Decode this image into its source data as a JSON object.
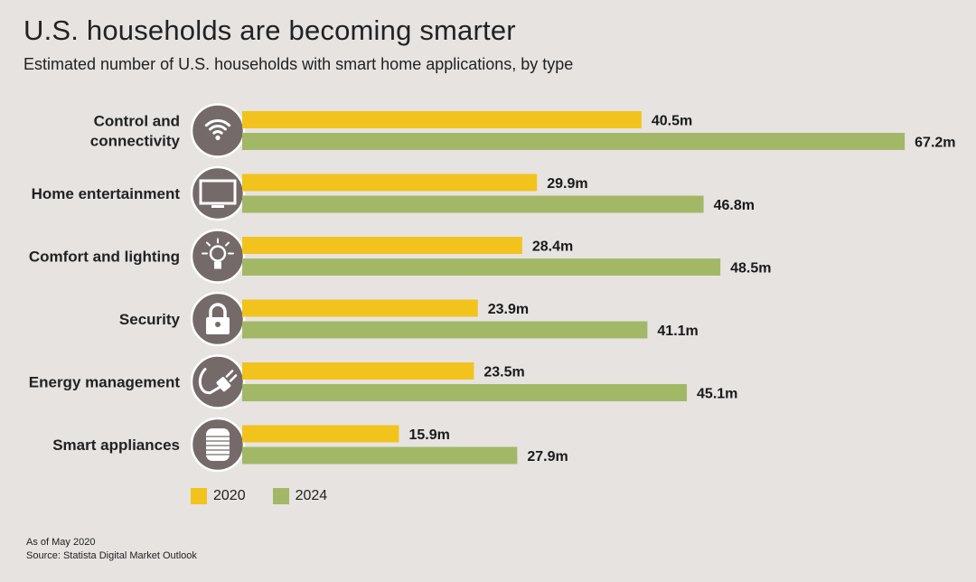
{
  "header": {
    "title": "U.S. households are becoming smarter",
    "subtitle": "Estimated number of U.S. households with smart home applications, by type"
  },
  "colors": {
    "series_2020": "#f2c31d",
    "series_2024": "#a3b866",
    "icon_circle": "#756a6a",
    "background": "#e6e3e1"
  },
  "chart_data": {
    "type": "bar",
    "orientation": "horizontal",
    "categories": [
      "Control and connectivity",
      "Home entertainment",
      "Comfort and lighting",
      "Security",
      "Energy management",
      "Smart appliances"
    ],
    "category_lines": [
      [
        "Control and",
        "connectivity"
      ],
      [
        "Home entertainment"
      ],
      [
        "Comfort and lighting"
      ],
      [
        "Security"
      ],
      [
        "Energy management"
      ],
      [
        "Smart appliances"
      ]
    ],
    "category_icons": [
      "wifi-icon",
      "tv-icon",
      "lightbulb-icon",
      "lock-icon",
      "plug-icon",
      "appliance-icon"
    ],
    "series": [
      {
        "name": "2020",
        "values": [
          40.5,
          29.9,
          28.4,
          23.9,
          23.5,
          15.9
        ],
        "labels": [
          "40.5m",
          "29.9m",
          "28.4m",
          "23.9m",
          "23.5m",
          "15.9m"
        ]
      },
      {
        "name": "2024",
        "values": [
          67.2,
          46.8,
          48.5,
          41.1,
          45.1,
          27.9
        ],
        "labels": [
          "67.2m",
          "46.8m",
          "48.5m",
          "41.1m",
          "45.1m",
          "27.9m"
        ]
      }
    ],
    "unit": "m",
    "legend_position": "bottom-left",
    "grid": false
  },
  "legend": {
    "items": [
      "2020",
      "2024"
    ]
  },
  "footer": {
    "note": "As of May 2020",
    "source": "Source: Statista Digital Market Outlook"
  }
}
